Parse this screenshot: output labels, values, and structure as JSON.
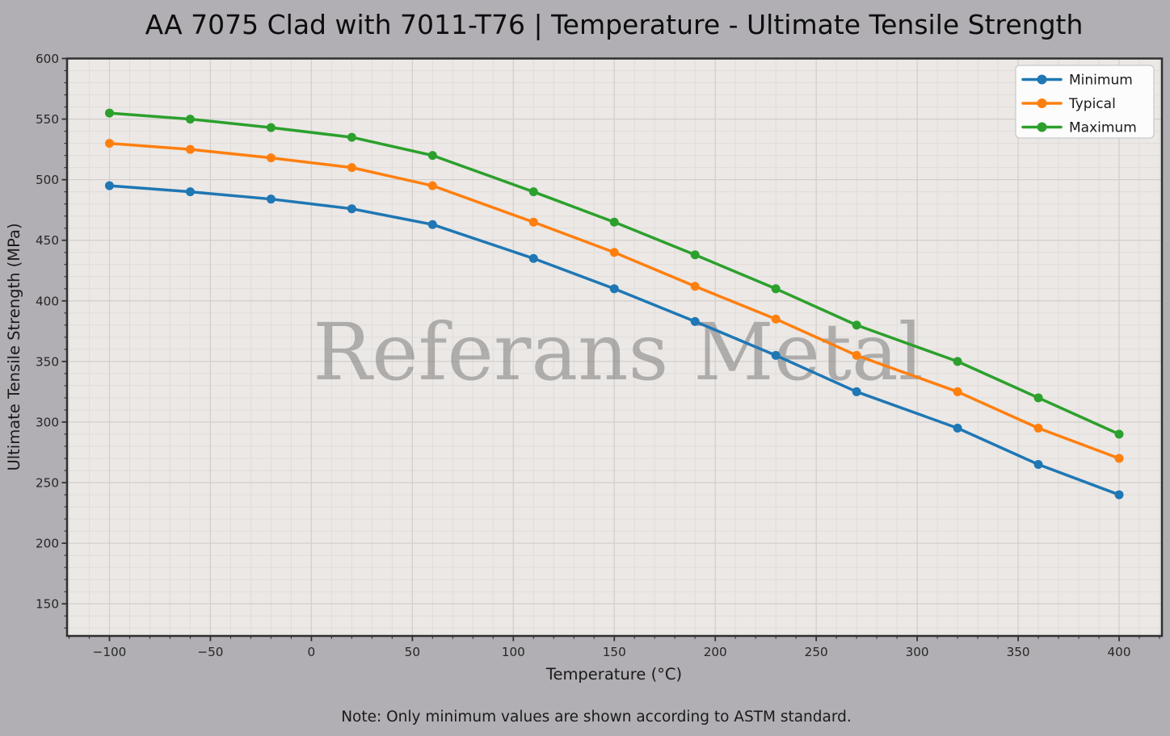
{
  "chart_data": {
    "type": "line",
    "title": "AA 7075 Clad with 7011-T76 | Temperature - Ultimate Tensile Strength",
    "xlabel": "Temperature (°C)",
    "ylabel": "Ultimate Tensile Strength (MPa)",
    "note": "Note: Only minimum values are shown according to ASTM standard.",
    "watermark": "Referans Metal",
    "x": [
      -100,
      -60,
      -20,
      20,
      60,
      110,
      150,
      190,
      230,
      270,
      320,
      360,
      400
    ],
    "series": [
      {
        "name": "Minimum",
        "color": "#1f77b4",
        "values": [
          495,
          490,
          484,
          476,
          463,
          435,
          410,
          383,
          355,
          325,
          295,
          265,
          240
        ]
      },
      {
        "name": "Typical",
        "color": "#ff7f0e",
        "values": [
          530,
          525,
          518,
          510,
          495,
          465,
          440,
          412,
          385,
          355,
          325,
          295,
          270
        ]
      },
      {
        "name": "Maximum",
        "color": "#2ca02c",
        "values": [
          555,
          550,
          543,
          535,
          520,
          490,
          465,
          438,
          410,
          380,
          350,
          320,
          290
        ]
      }
    ],
    "x_ticks": [
      -100,
      -50,
      0,
      50,
      100,
      150,
      200,
      250,
      300,
      350,
      400
    ],
    "y_ticks": [
      150,
      200,
      250,
      300,
      350,
      400,
      450,
      500,
      550,
      600
    ],
    "xlim": [
      -121,
      421.2
    ],
    "ylim": [
      123.5,
      600
    ],
    "grid": true,
    "minor_grid_step_x": 10,
    "minor_grid_step_y": 10,
    "legend_position": "upper right",
    "colors": {
      "figure_bg": "#b1afb4",
      "axes_bg": "#ebe8e6",
      "grid_major": "#d3cfcc",
      "grid_minor": "#e0dcda",
      "spine": "#2f2f2f",
      "watermark": "#7d7d7d"
    }
  }
}
